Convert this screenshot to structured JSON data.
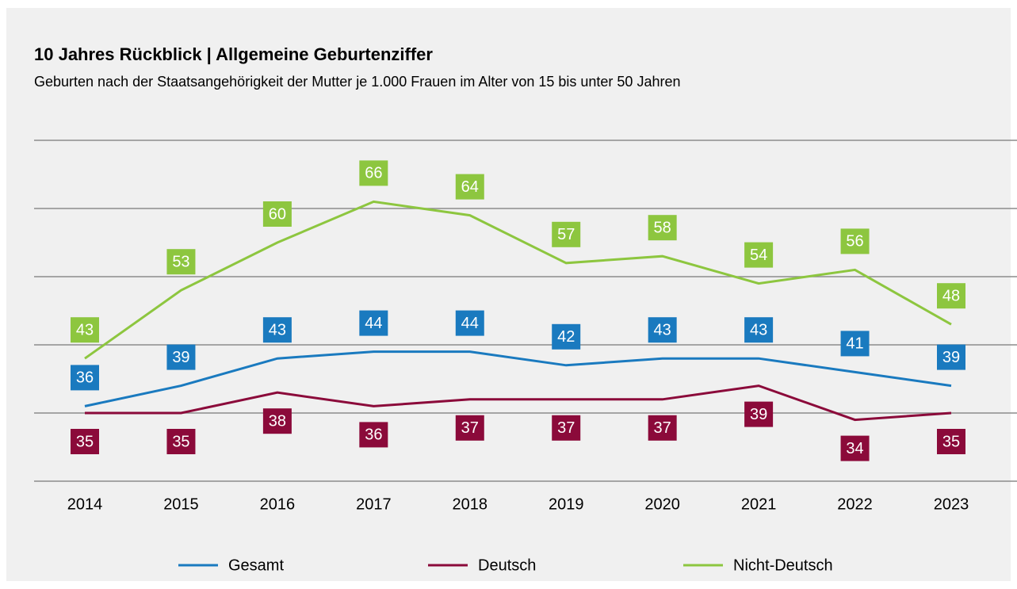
{
  "chart_data": {
    "type": "line",
    "title": "10 Jahres Rückblick | Allgemeine Geburtenziffer",
    "subtitle": "Geburten nach der Staatsangehörigkeit der Mutter je 1.000 Frauen im Alter von 15 bis unter 50 Jahren",
    "categories": [
      "2014",
      "2015",
      "2016",
      "2017",
      "2018",
      "2019",
      "2020",
      "2021",
      "2022",
      "2023"
    ],
    "series": [
      {
        "name": "Gesamt",
        "color": "#1a7abf",
        "values": [
          36,
          39,
          43,
          44,
          44,
          42,
          43,
          43,
          41,
          39
        ]
      },
      {
        "name": "Deutsch",
        "color": "#8b0a3a",
        "values": [
          35,
          35,
          38,
          36,
          37,
          37,
          37,
          39,
          34,
          35
        ]
      },
      {
        "name": "Nicht-Deutsch",
        "color": "#8dc63f",
        "values": [
          43,
          53,
          60,
          66,
          64,
          57,
          58,
          54,
          56,
          48
        ]
      }
    ],
    "ylim": [
      25,
      75
    ],
    "yticks": [
      25,
      35,
      45,
      55,
      65,
      75
    ],
    "grid": true
  }
}
